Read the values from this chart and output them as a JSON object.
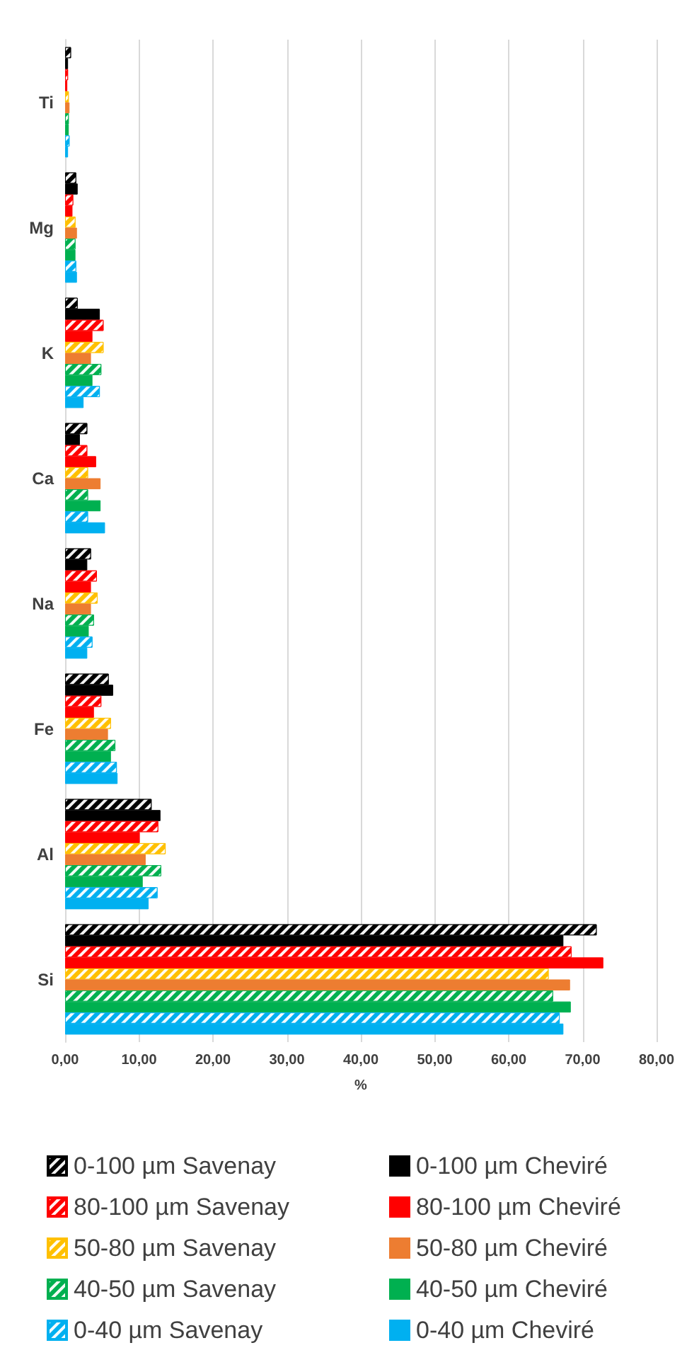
{
  "chart_data": {
    "type": "bar",
    "orientation": "horizontal",
    "xlabel": "%",
    "categories": [
      "Ti",
      "Mg",
      "K",
      "Ca",
      "Na",
      "Fe",
      "Al",
      "Si"
    ],
    "series": [
      {
        "name": "0-100 µm Savenay",
        "color": "#000000",
        "values": [
          0.8,
          1.5,
          1.7,
          3.0,
          3.5,
          5.9,
          11.7,
          71.9
        ]
      },
      {
        "name": "0-100 µm Cheviré",
        "color": "#000000",
        "values": [
          0.4,
          1.7,
          4.7,
          2.0,
          3.0,
          6.5,
          12.9,
          67.4
        ]
      },
      {
        "name": "80-100 µm Savenay",
        "color": "#ff0000",
        "values": [
          0.4,
          1.1,
          5.2,
          3.0,
          4.3,
          4.9,
          12.6,
          68.5
        ]
      },
      {
        "name": "80-100 µm Cheviré",
        "color": "#ff0000",
        "values": [
          0.3,
          1.0,
          3.7,
          4.2,
          3.5,
          3.9,
          10.1,
          72.8
        ]
      },
      {
        "name": "50-80 µm Savenay",
        "color": "#ffc000",
        "values": [
          0.5,
          1.4,
          5.2,
          3.1,
          4.4,
          6.2,
          13.6,
          65.4
        ]
      },
      {
        "name": "50-80 µm Cheviré",
        "color": "#ed7d31",
        "values": [
          0.6,
          1.6,
          3.5,
          4.8,
          3.5,
          5.8,
          10.9,
          68.3
        ]
      },
      {
        "name": "40-50 µm Savenay",
        "color": "#00b050",
        "values": [
          0.5,
          1.4,
          4.9,
          3.1,
          3.9,
          6.8,
          13.0,
          66.0
        ]
      },
      {
        "name": "40-50 µm Cheviré",
        "color": "#00b050",
        "values": [
          0.5,
          1.4,
          3.7,
          4.8,
          3.2,
          6.2,
          10.5,
          68.4
        ]
      },
      {
        "name": "0-40 µm Savenay",
        "color": "#00b0f0",
        "values": [
          0.6,
          1.5,
          4.7,
          3.1,
          3.7,
          7.0,
          12.5,
          66.9
        ]
      },
      {
        "name": "0-40 µm Cheviré",
        "color": "#00b0f0",
        "values": [
          0.4,
          1.6,
          2.5,
          5.4,
          3.0,
          7.1,
          11.3,
          67.4
        ]
      }
    ],
    "xlim": [
      0,
      80
    ],
    "xticks": [
      {
        "value": 0,
        "label": "0,00"
      },
      {
        "value": 10,
        "label": "10,00"
      },
      {
        "value": 20,
        "label": "20,00"
      },
      {
        "value": 30,
        "label": "30,00"
      },
      {
        "value": 40,
        "label": "40,00"
      },
      {
        "value": 50,
        "label": "50,00"
      },
      {
        "value": 60,
        "label": "60,00"
      },
      {
        "value": 70,
        "label": "70,00"
      },
      {
        "value": 80,
        "label": "80,00"
      }
    ],
    "grid": "x",
    "legend": "bottom"
  }
}
